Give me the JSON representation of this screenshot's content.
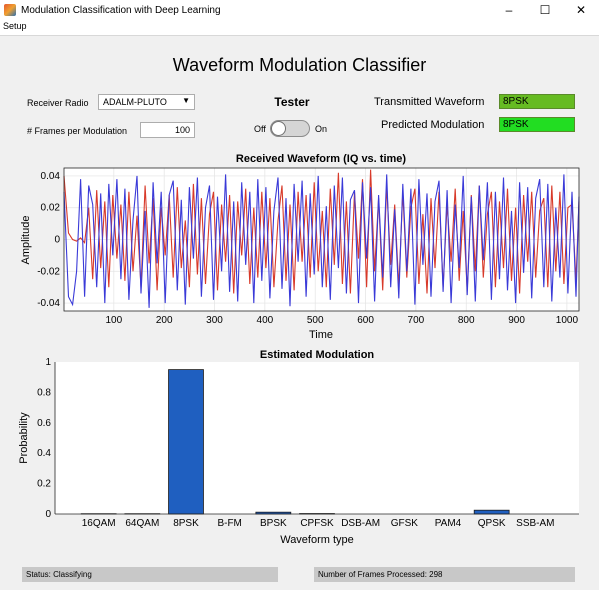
{
  "window": {
    "title": "Modulation Classification with Deep Learning",
    "menu": [
      "Setup"
    ]
  },
  "header": {
    "title": "Waveform Modulation Classifier"
  },
  "controls": {
    "receiver_label": "Receiver Radio",
    "receiver_value": "ADALM-PLUTO",
    "frames_label": "# Frames per Modulation",
    "frames_value": "100",
    "tester_title": "Tester",
    "switch_off": "Off",
    "switch_on": "On",
    "tester_on": false
  },
  "results": {
    "transmitted_label": "Transmitted Waveform",
    "transmitted_value": "8PSK",
    "predicted_label": "Predicted Modulation",
    "predicted_value": "8PSK",
    "transmitted_color": "#66bb22",
    "predicted_color": "#22dd22"
  },
  "footer": {
    "status": "Status: Classifying",
    "frames_processed": "Number of Frames Processed: 298"
  },
  "chart_data": [
    {
      "type": "line",
      "title": "Received Waveform (IQ vs. time)",
      "xlabel": "Time",
      "ylabel": "Amplitude",
      "xlim": [
        1,
        1024
      ],
      "ylim": [
        -0.045,
        0.045
      ],
      "xticks": [
        "100",
        "200",
        "300",
        "400",
        "500",
        "600",
        "700",
        "800",
        "900",
        "1000"
      ],
      "yticks": [
        "-0.04",
        "-0.02",
        "0",
        "0.02",
        "0.04"
      ],
      "grid": true,
      "series": [
        {
          "color": "#3a3ad8",
          "x": [
            1,
            10,
            18,
            26,
            34,
            42,
            50,
            58,
            66,
            74,
            82,
            90,
            98,
            106,
            114,
            122,
            130,
            138,
            146,
            154,
            162,
            170,
            178,
            186,
            194,
            202,
            210,
            218,
            226,
            234,
            242,
            250,
            258,
            266,
            274,
            282,
            290,
            298,
            306,
            314,
            322,
            330,
            338,
            346,
            354,
            362,
            370,
            378,
            386,
            394,
            402,
            410,
            418,
            426,
            434,
            442,
            450,
            458,
            466,
            474,
            482,
            490,
            498,
            506,
            514,
            522,
            530,
            538,
            546,
            554,
            562,
            570,
            578,
            586,
            594,
            602,
            610,
            618,
            626,
            634,
            642,
            650,
            658,
            666,
            674,
            682,
            690,
            698,
            706,
            714,
            722,
            730,
            738,
            746,
            754,
            762,
            770,
            778,
            786,
            794,
            802,
            810,
            818,
            826,
            834,
            842,
            850,
            858,
            866,
            874,
            882,
            890,
            898,
            906,
            914,
            922,
            930,
            938,
            946,
            954,
            962,
            970,
            978,
            986,
            994,
            1002,
            1010,
            1018,
            1024
          ],
          "y": [
            0.03,
            -0.036,
            -0.041,
            -0.02,
            0.038,
            -0.036,
            0.034,
            0.022,
            -0.03,
            0.029,
            -0.04,
            0.035,
            -0.01,
            0.038,
            -0.025,
            0.032,
            -0.038,
            0.012,
            0.04,
            -0.034,
            0.018,
            -0.043,
            0.036,
            -0.015,
            0.03,
            -0.04,
            0.028,
            0.037,
            -0.032,
            0.025,
            -0.041,
            0.033,
            -0.012,
            0.039,
            -0.036,
            0.02,
            0.034,
            -0.038,
            0.027,
            -0.02,
            0.041,
            -0.033,
            0.024,
            -0.039,
            0.036,
            -0.016,
            0.03,
            -0.04,
            0.038,
            -0.026,
            0.033,
            -0.037,
            0.018,
            0.039,
            -0.031,
            0.026,
            -0.042,
            0.035,
            -0.014,
            0.037,
            -0.036,
            0.029,
            -0.022,
            0.04,
            -0.03,
            0.021,
            -0.038,
            0.034,
            -0.018,
            0.039,
            -0.034,
            0.025,
            0.031,
            -0.04,
            0.036,
            -0.012,
            0.033,
            -0.039,
            0.028,
            -0.024,
            0.041,
            -0.03,
            0.019,
            -0.037,
            0.035,
            -0.02,
            0.032,
            -0.041,
            0.038,
            -0.016,
            0.029,
            -0.036,
            0.024,
            0.037,
            -0.033,
            0.031,
            -0.04,
            0.022,
            -0.018,
            0.04,
            -0.035,
            0.027,
            -0.039,
            0.034,
            -0.013,
            0.036,
            -0.038,
            0.03,
            -0.025,
            0.039,
            -0.032,
            0.018,
            -0.04,
            0.036,
            -0.021,
            0.033,
            -0.037,
            0.026,
            0.038,
            -0.03,
            0.035,
            -0.039,
            0.02,
            -0.024,
            0.041,
            -0.034,
            0.03,
            -0.036,
            0.027
          ]
        },
        {
          "color": "#d83a2a",
          "x": [
            1,
            10,
            18,
            26,
            34,
            42,
            50,
            58,
            66,
            74,
            82,
            90,
            98,
            106,
            114,
            122,
            130,
            138,
            146,
            154,
            162,
            170,
            178,
            186,
            194,
            202,
            210,
            218,
            226,
            234,
            242,
            250,
            258,
            266,
            274,
            282,
            290,
            298,
            306,
            314,
            322,
            330,
            338,
            346,
            354,
            362,
            370,
            378,
            386,
            394,
            402,
            410,
            418,
            426,
            434,
            442,
            450,
            458,
            466,
            474,
            482,
            490,
            498,
            506,
            514,
            522,
            530,
            538,
            546,
            554,
            562,
            570,
            578,
            586,
            594,
            602,
            610,
            618,
            626,
            634,
            642,
            650,
            658,
            666,
            674,
            682,
            690,
            698,
            706,
            714,
            722,
            730,
            738,
            746,
            754,
            762,
            770,
            778,
            786,
            794,
            802,
            810,
            818,
            826,
            834,
            842,
            850,
            858,
            866,
            874,
            882,
            890,
            898,
            906,
            914,
            922,
            930,
            938,
            946,
            954,
            962,
            970,
            978,
            986,
            994,
            1002,
            1010,
            1018,
            1024
          ],
          "y": [
            0.04,
            0.004,
            0.0,
            -0.001,
            0.001,
            -0.002,
            0.02,
            -0.025,
            0.031,
            -0.018,
            0.024,
            -0.03,
            0.028,
            -0.012,
            0.022,
            -0.026,
            0.03,
            -0.02,
            0.015,
            -0.03,
            0.034,
            -0.015,
            0.026,
            -0.032,
            0.02,
            -0.01,
            0.028,
            -0.024,
            0.033,
            -0.018,
            0.012,
            -0.03,
            0.035,
            -0.022,
            0.026,
            -0.028,
            0.016,
            0.03,
            -0.032,
            0.022,
            -0.014,
            0.028,
            -0.034,
            0.024,
            -0.01,
            0.032,
            -0.028,
            0.02,
            -0.024,
            0.03,
            -0.018,
            0.026,
            -0.03,
            0.012,
            0.034,
            -0.026,
            0.022,
            -0.032,
            0.03,
            -0.014,
            0.028,
            -0.024,
            0.036,
            -0.02,
            0.018,
            -0.03,
            0.032,
            -0.016,
            0.042,
            -0.028,
            0.024,
            -0.034,
            0.03,
            -0.012,
            0.038,
            -0.03,
            0.044,
            -0.02,
            0.026,
            -0.032,
            0.034,
            -0.016,
            0.022,
            -0.03,
            0.03,
            -0.024,
            0.02,
            0.032,
            -0.028,
            0.016,
            -0.034,
            0.026,
            -0.018,
            0.03,
            -0.03,
            0.022,
            -0.014,
            0.032,
            -0.026,
            0.018,
            -0.032,
            0.028,
            -0.02,
            0.034,
            -0.024,
            0.016,
            0.03,
            -0.03,
            0.024,
            -0.018,
            0.032,
            -0.026,
            0.02,
            -0.034,
            0.028,
            -0.014,
            0.03,
            -0.024,
            0.018,
            0.026,
            -0.03,
            0.034,
            -0.02,
            0.03,
            -0.028,
            0.02,
            0.022,
            -0.026,
            0.024
          ]
        }
      ]
    },
    {
      "type": "bar",
      "title": "Estimated Modulation",
      "xlabel": "Waveform type",
      "ylabel": "Probability",
      "ylim": [
        0,
        1
      ],
      "yticks": [
        "0",
        "0.2",
        "0.4",
        "0.6",
        "0.8",
        "1"
      ],
      "categories": [
        "16QAM",
        "64QAM",
        "8PSK",
        "B-FM",
        "BPSK",
        "CPFSK",
        "DSB-AM",
        "GFSK",
        "PAM4",
        "QPSK",
        "SSB-AM"
      ],
      "values": [
        0.002,
        0.002,
        0.95,
        0.0,
        0.012,
        0.003,
        0.0,
        0.0,
        0.0,
        0.025,
        0.0
      ],
      "bar_color": "#1f5fc0"
    }
  ]
}
